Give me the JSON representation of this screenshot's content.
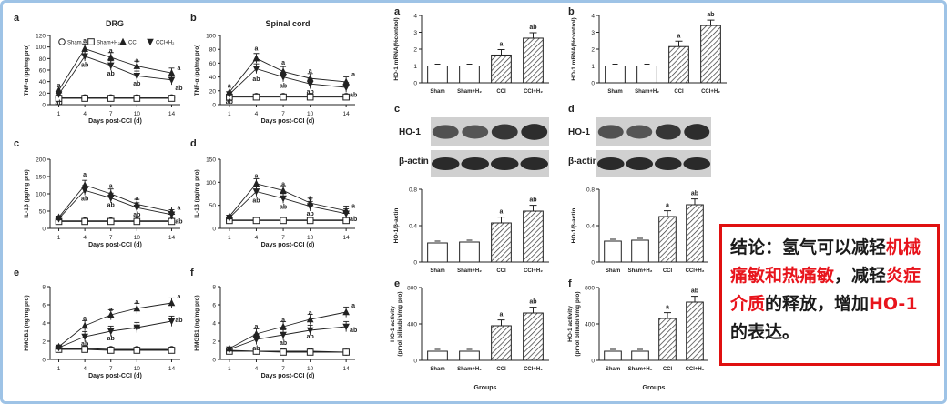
{
  "colors": {
    "conclusion_border": "#e01010",
    "highlight_text": "#e8141c",
    "frame_border": "#9ec3e6"
  },
  "left_panels": [
    {
      "letter": "a",
      "title": "DRG",
      "ylabel": "TNF-α (pg/mg pro)",
      "chart_data": {
        "type": "line",
        "x": [
          1,
          4,
          7,
          10,
          14
        ],
        "xlabel": "Days post-CCI (d)",
        "ylim": [
          0,
          120
        ],
        "yticks": [
          "0",
          "20",
          "40",
          "60",
          "80",
          "100",
          "120"
        ],
        "legend": [
          "Sham",
          "Sham+H₂",
          "CCI",
          "CCI+H₂"
        ],
        "series": [
          {
            "name": "Sham",
            "values": [
              12,
              12,
              12,
              12,
              12
            ],
            "marker": "circle"
          },
          {
            "name": "Sham+H₂",
            "values": [
              11,
              11,
              11,
              11,
              11
            ],
            "marker": "square"
          },
          {
            "name": "CCI",
            "values": [
              25,
              97,
              82,
              67,
              55
            ],
            "marker": "triangle"
          },
          {
            "name": "CCI+H₂",
            "values": [
              18,
              84,
              68,
              50,
              43
            ],
            "marker": "inverted-triangle"
          }
        ],
        "annotations": [
          {
            "x": 1,
            "y": 35,
            "text": "a"
          },
          {
            "x": 1,
            "y": 5,
            "text": "ab"
          },
          {
            "x": 4,
            "y": 112,
            "text": "a"
          },
          {
            "x": 4,
            "y": 70,
            "text": "ab"
          },
          {
            "x": 7,
            "y": 95,
            "text": "a"
          },
          {
            "x": 7,
            "y": 55,
            "text": "ab"
          },
          {
            "x": 10,
            "y": 78,
            "text": "a"
          },
          {
            "x": 10,
            "y": 38,
            "text": "ab"
          },
          {
            "x": 14,
            "y": 65,
            "text": "a"
          },
          {
            "x": 14,
            "y": 30,
            "text": "ab"
          }
        ]
      }
    },
    {
      "letter": "b",
      "title": "Spinal cord",
      "ylabel": "TNF-α (pg/mg pro)",
      "chart_data": {
        "type": "line",
        "x": [
          1,
          4,
          7,
          10,
          14
        ],
        "xlabel": "Days post-CCI (d)",
        "ylim": [
          0,
          100
        ],
        "yticks": [
          "0",
          "20",
          "40",
          "60",
          "80",
          "100"
        ],
        "series": [
          {
            "name": "Sham",
            "values": [
              12,
              12,
              12,
              12,
              12
            ],
            "marker": "circle"
          },
          {
            "name": "Sham+H₂",
            "values": [
              11,
              11,
              11,
              11,
              11
            ],
            "marker": "square"
          },
          {
            "name": "CCI",
            "values": [
              18,
              67,
              48,
              38,
              33
            ],
            "marker": "triangle"
          },
          {
            "name": "CCI+H₂",
            "values": [
              15,
              52,
              40,
              30,
              25
            ],
            "marker": "inverted-triangle"
          }
        ],
        "annotations": [
          {
            "x": 1,
            "y": 28,
            "text": "a"
          },
          {
            "x": 1,
            "y": 5,
            "text": "ab"
          },
          {
            "x": 4,
            "y": 82,
            "text": "a"
          },
          {
            "x": 4,
            "y": 38,
            "text": "ab"
          },
          {
            "x": 7,
            "y": 62,
            "text": "a"
          },
          {
            "x": 7,
            "y": 28,
            "text": "ab"
          },
          {
            "x": 10,
            "y": 50,
            "text": "a"
          },
          {
            "x": 10,
            "y": 20,
            "text": "ab"
          },
          {
            "x": 14,
            "y": 45,
            "text": "a"
          },
          {
            "x": 14,
            "y": 15,
            "text": "ab"
          }
        ]
      }
    },
    {
      "letter": "c",
      "title": "",
      "ylabel": "IL-1β (pg/mg pro)",
      "chart_data": {
        "type": "line",
        "x": [
          1,
          4,
          7,
          10,
          14
        ],
        "xlabel": "Days post-CCI (d)",
        "ylim": [
          0,
          200
        ],
        "yticks": [
          "0",
          "50",
          "100",
          "150",
          "200"
        ],
        "series": [
          {
            "name": "Sham",
            "values": [
              22,
              22,
              22,
              22,
              22
            ],
            "marker": "circle"
          },
          {
            "name": "Sham+H₂",
            "values": [
              20,
              20,
              20,
              20,
              20
            ],
            "marker": "square"
          },
          {
            "name": "CCI",
            "values": [
              32,
              125,
              100,
              70,
              48
            ],
            "marker": "triangle"
          },
          {
            "name": "CCI+H₂",
            "values": [
              28,
              110,
              88,
              60,
              40
            ],
            "marker": "inverted-triangle"
          }
        ],
        "annotations": [
          {
            "x": 4,
            "y": 158,
            "text": "a"
          },
          {
            "x": 4,
            "y": 88,
            "text": "ab"
          },
          {
            "x": 7,
            "y": 125,
            "text": "a"
          },
          {
            "x": 7,
            "y": 70,
            "text": "ab"
          },
          {
            "x": 10,
            "y": 90,
            "text": "a"
          },
          {
            "x": 10,
            "y": 42,
            "text": "ab"
          },
          {
            "x": 14,
            "y": 62,
            "text": "a"
          },
          {
            "x": 14,
            "y": 22,
            "text": "ab"
          }
        ]
      }
    },
    {
      "letter": "d",
      "title": "",
      "ylabel": "IL-1β (pg/mg pro)",
      "chart_data": {
        "type": "line",
        "x": [
          1,
          4,
          7,
          10,
          14
        ],
        "xlabel": "Days post-CCI (d)",
        "ylim": [
          0,
          150
        ],
        "yticks": [
          "0",
          "50",
          "100",
          "150"
        ],
        "series": [
          {
            "name": "Sham",
            "values": [
              18,
              18,
              18,
              18,
              18
            ],
            "marker": "circle"
          },
          {
            "name": "Sham+H₂",
            "values": [
              17,
              17,
              17,
              17,
              17
            ],
            "marker": "square"
          },
          {
            "name": "CCI",
            "values": [
              26,
              97,
              82,
              55,
              38
            ],
            "marker": "triangle"
          },
          {
            "name": "CCI+H₂",
            "values": [
              23,
              80,
              65,
              48,
              32
            ],
            "marker": "inverted-triangle"
          }
        ],
        "annotations": [
          {
            "x": 4,
            "y": 115,
            "text": "a"
          },
          {
            "x": 4,
            "y": 62,
            "text": "ab"
          },
          {
            "x": 7,
            "y": 98,
            "text": "a"
          },
          {
            "x": 7,
            "y": 48,
            "text": "ab"
          },
          {
            "x": 10,
            "y": 68,
            "text": "a"
          },
          {
            "x": 10,
            "y": 34,
            "text": "ab"
          },
          {
            "x": 14,
            "y": 50,
            "text": "a"
          },
          {
            "x": 14,
            "y": 22,
            "text": "ab"
          }
        ]
      }
    },
    {
      "letter": "e",
      "title": "",
      "ylabel": "HMGB1 (ng/mg pro)",
      "chart_data": {
        "type": "line",
        "x": [
          1,
          4,
          7,
          10,
          14
        ],
        "xlabel": "Days post-CCI (d)",
        "ylim": [
          0,
          8
        ],
        "yticks": [
          "0",
          "2",
          "4",
          "6",
          "8"
        ],
        "series": [
          {
            "name": "Sham",
            "values": [
              1.2,
              1.2,
              1.1,
              1.1,
              1.1
            ],
            "marker": "circle"
          },
          {
            "name": "Sham+H₂",
            "values": [
              1.1,
              1.1,
              1.0,
              1.0,
              1.0
            ],
            "marker": "square"
          },
          {
            "name": "CCI",
            "values": [
              1.4,
              3.7,
              4.9,
              5.6,
              6.2
            ],
            "marker": "triangle"
          },
          {
            "name": "CCI+H₂",
            "values": [
              1.3,
              2.5,
              3.1,
              3.5,
              4.2
            ],
            "marker": "inverted-triangle"
          }
        ],
        "annotations": [
          {
            "x": 4,
            "y": 4.6,
            "text": "a"
          },
          {
            "x": 4,
            "y": 1.8,
            "text": "ab"
          },
          {
            "x": 7,
            "y": 5.6,
            "text": "a"
          },
          {
            "x": 7,
            "y": 2.4,
            "text": "ab"
          },
          {
            "x": 10,
            "y": 6.4,
            "text": "a"
          },
          {
            "x": 10,
            "y": 3.6,
            "text": "ab"
          },
          {
            "x": 14,
            "y": 7.0,
            "text": "a"
          },
          {
            "x": 14,
            "y": 4.4,
            "text": "ab"
          }
        ]
      }
    },
    {
      "letter": "f",
      "title": "",
      "ylabel": "HMGB1 (ng/mg pro)",
      "chart_data": {
        "type": "line",
        "x": [
          1,
          4,
          7,
          10,
          14
        ],
        "xlabel": "Days post-CCI (d)",
        "ylim": [
          0,
          8
        ],
        "yticks": [
          "0",
          "2",
          "4",
          "6",
          "8"
        ],
        "series": [
          {
            "name": "Sham",
            "values": [
              1.0,
              0.9,
              0.9,
              0.9,
              0.8
            ],
            "marker": "circle"
          },
          {
            "name": "Sham+H₂",
            "values": [
              0.9,
              0.9,
              0.8,
              0.8,
              0.8
            ],
            "marker": "square"
          },
          {
            "name": "CCI",
            "values": [
              1.2,
              2.8,
              3.6,
              4.4,
              5.2
            ],
            "marker": "triangle"
          },
          {
            "name": "CCI+H₂",
            "values": [
              1.1,
              2.2,
              2.7,
              3.2,
              3.6
            ],
            "marker": "inverted-triangle"
          }
        ],
        "annotations": [
          {
            "x": 4,
            "y": 3.7,
            "text": "a"
          },
          {
            "x": 4,
            "y": 1.3,
            "text": "ab"
          },
          {
            "x": 7,
            "y": 4.4,
            "text": "a"
          },
          {
            "x": 7,
            "y": 1.9,
            "text": "ab"
          },
          {
            "x": 10,
            "y": 5.2,
            "text": "a"
          },
          {
            "x": 10,
            "y": 2.6,
            "text": "ab"
          },
          {
            "x": 14,
            "y": 6.0,
            "text": "a"
          },
          {
            "x": 14,
            "y": 3.3,
            "text": "ab"
          }
        ]
      }
    }
  ],
  "right_bar_panels": [
    {
      "letter": "a",
      "ylabel": "HO-1 mRNA(%control)",
      "xlabel": "",
      "chart_data": {
        "type": "bar",
        "categories": [
          "Sham",
          "Sham+H₂",
          "CCI",
          "CCI+H₂"
        ],
        "values": [
          1.0,
          1.0,
          1.65,
          2.65
        ],
        "ylim": [
          0,
          4
        ],
        "yticks": [
          "0",
          "1",
          "2",
          "3",
          "4"
        ],
        "labels": [
          "",
          "",
          "a",
          "ab"
        ]
      }
    },
    {
      "letter": "b",
      "ylabel": "HO-1 mRNA(%control)",
      "xlabel": "",
      "chart_data": {
        "type": "bar",
        "categories": [
          "Sham",
          "Sham+H₂",
          "CCI",
          "CCI+H₂"
        ],
        "values": [
          1.0,
          1.0,
          2.15,
          3.4
        ],
        "ylim": [
          0,
          4
        ],
        "yticks": [
          "0",
          "1",
          "2",
          "3",
          "4"
        ],
        "labels": [
          "",
          "",
          "a",
          "ab"
        ]
      }
    },
    {
      "letter": "",
      "ylabel": "HO-1/β-actin",
      "xlabel": "",
      "chart_data": {
        "type": "bar",
        "categories": [
          "Sham",
          "Sham+H₂",
          "CCI",
          "CCI+H₂"
        ],
        "values": [
          0.21,
          0.22,
          0.43,
          0.56
        ],
        "ylim": [
          0,
          0.8
        ],
        "yticks": [
          "0",
          "0.4",
          "0.8"
        ],
        "labels": [
          "",
          "",
          "a",
          "ab"
        ]
      }
    },
    {
      "letter": "",
      "ylabel": "HO-1/β-actin",
      "xlabel": "",
      "chart_data": {
        "type": "bar",
        "categories": [
          "Sham",
          "Sham+H₂",
          "CCI",
          "CCI+H₂"
        ],
        "values": [
          0.23,
          0.24,
          0.5,
          0.63
        ],
        "ylim": [
          0,
          0.8
        ],
        "yticks": [
          "0",
          "0.4",
          "0.8"
        ],
        "labels": [
          "",
          "",
          "a",
          "ab"
        ]
      }
    },
    {
      "letter": "e",
      "ylabel": "HO-1 activity (pmol bilirubin/mg pro)",
      "xlabel": "Groups",
      "chart_data": {
        "type": "bar",
        "categories": [
          "Sham",
          "Sham+H₂",
          "CCI",
          "CCI+H₂"
        ],
        "values": [
          100,
          100,
          380,
          520
        ],
        "ylim": [
          0,
          800
        ],
        "yticks": [
          "0",
          "400",
          "800"
        ],
        "labels": [
          "",
          "",
          "a",
          "ab"
        ]
      }
    },
    {
      "letter": "f",
      "ylabel": "HO-1 activity (pmol bilirubin/mg pro)",
      "xlabel": "Groups",
      "chart_data": {
        "type": "bar",
        "categories": [
          "Sham",
          "Sham+H₂",
          "CCI",
          "CCI+H₂"
        ],
        "values": [
          100,
          100,
          460,
          640
        ],
        "ylim": [
          0,
          800
        ],
        "yticks": [
          "0",
          "400",
          "800"
        ],
        "labels": [
          "",
          "",
          "a",
          "ab"
        ]
      }
    }
  ],
  "blots": [
    {
      "letter": "c",
      "row1": "HO-1",
      "row2": "β-actin"
    },
    {
      "letter": "d",
      "row1": "HO-1",
      "row2": "β-actin"
    }
  ],
  "conclusion": {
    "prefix": "结论：氢气可以减轻",
    "hl1": "机械痛敏和热痛敏",
    "mid1": "，减轻",
    "hl2": "炎症介质",
    "mid2": "的释放，增加",
    "hl3": "HO-1",
    "suffix": "的表达。"
  }
}
